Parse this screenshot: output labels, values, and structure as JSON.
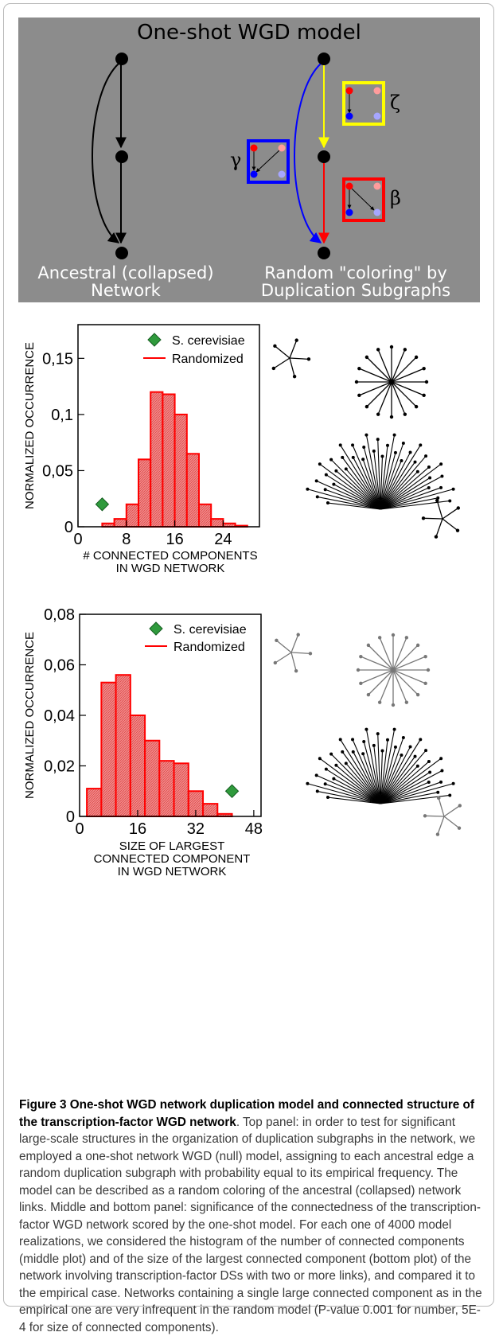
{
  "top_panel": {
    "title": "One-shot WGD model",
    "ancestral_label_line1": "Ancestral (collapsed)",
    "ancestral_label_line2": "Network",
    "random_label_line1": "Random \"coloring\" by",
    "random_label_line2": "Duplication Subgraphs",
    "greek": {
      "zeta": "ζ",
      "gamma": "γ",
      "beta": "β"
    },
    "colors": {
      "background": "#8c8c8c",
      "zeta_box": "#ffff00",
      "gamma_box": "#0000ff",
      "beta_box": "#ff0000",
      "blue_edge": "#0000ff",
      "yellow_edge": "#ffff00",
      "red_edge": "#ff0000"
    }
  },
  "chart_data": [
    {
      "type": "bar",
      "xlabel_line1": "# CONNECTED COMPONENTS",
      "xlabel_line2": "IN WGD NETWORK",
      "ylabel": "NORMALIZED OCCURRENCE",
      "xlim": [
        0,
        30
      ],
      "ylim": [
        0,
        0.18
      ],
      "xticks": [
        0,
        8,
        16,
        24
      ],
      "yticks": [
        0,
        0.05,
        0.1,
        0.15
      ],
      "yticklabels": [
        "0",
        "0,05",
        "0,1",
        "0,15"
      ],
      "bin_width": 2,
      "bins_start": [
        4,
        6,
        8,
        10,
        12,
        14,
        16,
        18,
        20,
        22,
        24,
        26
      ],
      "values": [
        0.003,
        0.007,
        0.02,
        0.06,
        0.12,
        0.118,
        0.1,
        0.065,
        0.02,
        0.007,
        0.003,
        0.001
      ],
      "empirical_point": {
        "x": 4,
        "y": 0.02
      },
      "legend": {
        "empirical": "S. cerevisiae",
        "random": "Randomized",
        "position": "top-right"
      }
    },
    {
      "type": "bar",
      "xlabel_line1": "SIZE OF LARGEST",
      "xlabel_line2": "CONNECTED COMPONENT",
      "xlabel_line3": "IN WGD NETWORK",
      "ylabel": "NORMALIZED OCCURRENCE",
      "xlim": [
        0,
        50
      ],
      "ylim": [
        0,
        0.08
      ],
      "xticks": [
        0,
        16,
        32,
        48
      ],
      "yticks": [
        0,
        0.02,
        0.04,
        0.06,
        0.08
      ],
      "yticklabels": [
        "0",
        "0,02",
        "0,04",
        "0,06",
        "0,08"
      ],
      "bin_width": 4,
      "bins_start": [
        2,
        6,
        10,
        14,
        18,
        22,
        26,
        30,
        34,
        38
      ],
      "values": [
        0.011,
        0.053,
        0.056,
        0.04,
        0.03,
        0.022,
        0.021,
        0.01,
        0.005,
        0.001
      ],
      "empirical_point": {
        "x": 42,
        "y": 0.01
      },
      "legend": {
        "empirical": "S. cerevisiae",
        "random": "Randomized",
        "position": "top-right"
      }
    }
  ],
  "caption": {
    "bold": "Figure 3 One-shot WGD network duplication model and connected structure of the transcription-factor WGD network",
    "text": ". Top panel: in order to test for significant large-scale structures in the organization of duplication subgraphs in the network, we employed a one-shot network WGD (null) model, assigning to each ancestral edge a random duplication subgraph with probability equal to its empirical frequency. The model can be described as a random coloring of the ancestral (collapsed) network links. Middle and bottom panel: significance of the connectedness of the transcription-factor WGD network scored by the one-shot model. For each one of 4000 model realizations, we considered the histogram of the number of connected components (middle plot) and of the size of the largest connected component (bottom plot) of the network involving transcription-factor DSs with two or more links), and compared it to the empirical case. Networks containing a single large connected component as in the empirical one are very infrequent in the random model (P-value 0.001 for number, 5E-4 for size of connected components)."
  }
}
